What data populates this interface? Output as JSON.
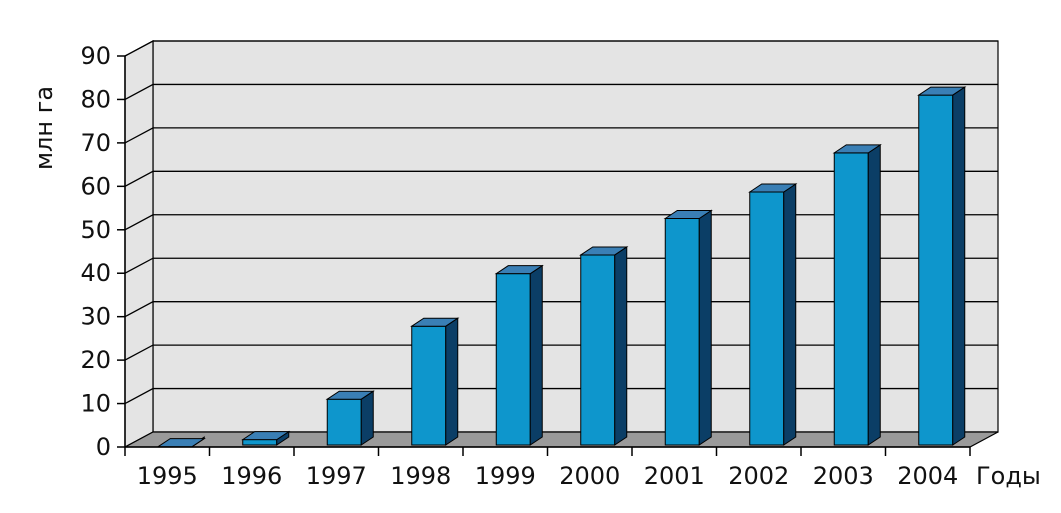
{
  "chart_data": {
    "type": "bar",
    "categories": [
      "1995",
      "1996",
      "1997",
      "1998",
      "1999",
      "2000",
      "2001",
      "2002",
      "2003",
      "2004"
    ],
    "values": [
      0.1,
      1.7,
      11,
      27.8,
      39.9,
      44.2,
      52.6,
      58.7,
      67.7,
      81
    ],
    "ylabel": "млн га",
    "xlabel": "Годы",
    "ylim": [
      0,
      90
    ],
    "yticks": [
      0,
      10,
      20,
      30,
      40,
      50,
      60,
      70,
      80,
      90
    ],
    "grid": true,
    "style": "3d-bar"
  },
  "colors": {
    "bar_front": "#0e96cc",
    "bar_top": "#3a7fb5",
    "bar_side": "#0b3e66",
    "wall": "#e4e4e4",
    "floor": "#9a9a9a",
    "grid": "#000000"
  }
}
